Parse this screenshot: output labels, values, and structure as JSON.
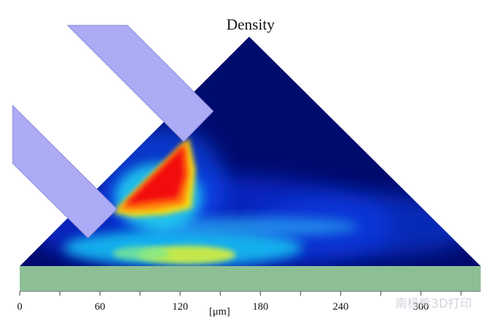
{
  "chart_data": {
    "type": "heatmap",
    "title": "Density",
    "xlabel": "[μm]",
    "xlim": [
      0,
      300
    ],
    "x_ticks": [
      0,
      60,
      120,
      180,
      240,
      300
    ],
    "x_tick_labels": [
      "0",
      "60",
      "120",
      "180",
      "240",
      "300"
    ],
    "grid": false,
    "legend": "none",
    "regions": [
      {
        "name": "powder bed",
        "shape": "triangle",
        "x_left": 0,
        "x_apex": 173,
        "x_right": 340
      },
      {
        "name": "substrate",
        "shape": "rectangle",
        "x_from": 0,
        "x_to": 340
      }
    ],
    "colormap": [
      "#00008b",
      "#0000ff",
      "#00c8ff",
      "#ffff00",
      "#ff0000"
    ],
    "colors": {
      "background_density": "#000b6e",
      "substrate": "#8dbf95",
      "nozzle": "#acabf5"
    }
  },
  "watermark": "南极熊3D打印"
}
